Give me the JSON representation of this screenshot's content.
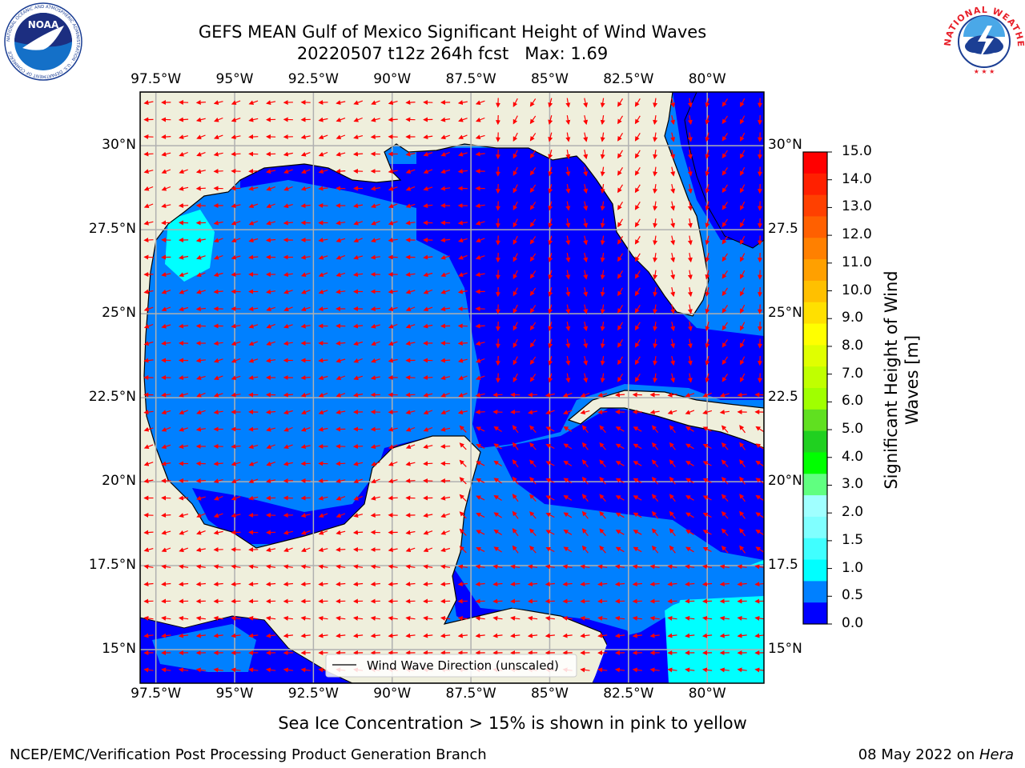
{
  "title": {
    "line1": "GEFS MEAN Gulf of Mexico Significant Height of Wind Waves",
    "line2_run": "20220507 t12z 264h fcst",
    "line2_max": "Max: 1.69"
  },
  "logos": {
    "noaa": {
      "text": "NOAA",
      "ring_text": "NATIONAL OCEANIC AND ATMOSPHERIC ADMINISTRATION · U.S. DEPARTMENT OF COMMERCE"
    },
    "nws": {
      "ring_text": "NATIONAL WEATHER SERVICE"
    }
  },
  "map": {
    "lon_labels": [
      "97.5°W",
      "95°W",
      "92.5°W",
      "90°W",
      "87.5°W",
      "85°W",
      "82.5°W",
      "80°W"
    ],
    "lon_values": [
      -97.5,
      -95,
      -92.5,
      -90,
      -87.5,
      -85,
      -82.5,
      -80
    ],
    "lat_labels_left": [
      "30°N",
      "27.5°N",
      "25°N",
      "22.5°N",
      "20°N",
      "17.5°N",
      "15°N"
    ],
    "lat_labels_right": [
      "30°N",
      "27.5",
      "25°N",
      "22.5",
      "20°N",
      "17.5",
      "15°N"
    ],
    "lat_values": [
      30,
      27.5,
      25,
      22.5,
      20,
      17.5,
      15
    ],
    "extent": {
      "lon_min": -98,
      "lon_max": -78.2,
      "lat_min": 14,
      "lat_max": 31.6
    },
    "legend_label": "Wind Wave Direction (unscaled)",
    "colors": {
      "land": "#efefdc",
      "band_0_0_5": "#0000ff",
      "band_0_5_1": "#0080ff",
      "band_1_1_5": "#00ffff",
      "band_1_5_2": "#4dffff",
      "arrow": "#ff0000",
      "grid": "#b0b0b0"
    }
  },
  "colorbar": {
    "tick_labels": [
      "15.0",
      "14.0",
      "13.0",
      "12.0",
      "11.0",
      "10.0",
      "9.0",
      "8.0",
      "7.0",
      "6.0",
      "5.0",
      "4.0",
      "3.0",
      "2.0",
      "1.5",
      "1.0",
      "0.5",
      "0.0"
    ],
    "label_line1": "Significant Height of Wind",
    "label_line2": "Waves [m]",
    "colors_top_to_bottom": [
      "#ff0000",
      "#ff2000",
      "#ff4000",
      "#ff6000",
      "#ff8000",
      "#ffa000",
      "#ffc000",
      "#ffe000",
      "#ffff00",
      "#e0ff00",
      "#c0ff00",
      "#a0ff00",
      "#60e020",
      "#20d020",
      "#00ff00",
      "#60ff80",
      "#a0ffff",
      "#80ffff",
      "#40ffff",
      "#00ffff",
      "#0080ff",
      "#0000ff"
    ]
  },
  "subtitle": "Sea Ice Concentration > 15% is shown in pink to yellow",
  "footer": {
    "left": "NCEP/EMC/Verification Post Processing Product Generation Branch",
    "right_date": "08 May 2022 on ",
    "right_host": "Hera"
  }
}
